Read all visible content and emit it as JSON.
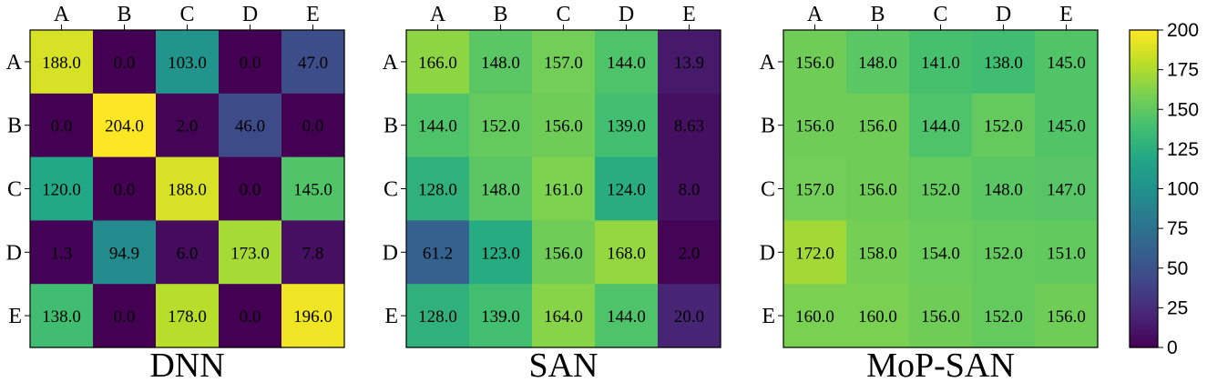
{
  "chart_data": [
    {
      "type": "heatmap",
      "title": "DNN",
      "x_categories": [
        "A",
        "B",
        "C",
        "D",
        "E"
      ],
      "y_categories": [
        "A",
        "B",
        "C",
        "D",
        "E"
      ],
      "values": [
        [
          188.0,
          0.0,
          103.0,
          0.0,
          47.0
        ],
        [
          0.0,
          204.0,
          2.0,
          46.0,
          0.0
        ],
        [
          120.0,
          0.0,
          188.0,
          0.0,
          145.0
        ],
        [
          1.3,
          94.9,
          6.0,
          173.0,
          7.8
        ],
        [
          138.0,
          0.0,
          178.0,
          0.0,
          196.0
        ]
      ],
      "labels": [
        [
          "188.0",
          "0.0",
          "103.0",
          "0.0",
          "47.0"
        ],
        [
          "0.0",
          "204.0",
          "2.0",
          "46.0",
          "0.0"
        ],
        [
          "120.0",
          "0.0",
          "188.0",
          "0.0",
          "145.0"
        ],
        [
          "1.3",
          "94.9",
          "6.0",
          "173.0",
          "7.8"
        ],
        [
          "138.0",
          "0.0",
          "178.0",
          "0.0",
          "196.0"
        ]
      ]
    },
    {
      "type": "heatmap",
      "title": "SAN",
      "x_categories": [
        "A",
        "B",
        "C",
        "D",
        "E"
      ],
      "y_categories": [
        "A",
        "B",
        "C",
        "D",
        "E"
      ],
      "values": [
        [
          166.0,
          148.0,
          157.0,
          144.0,
          13.9
        ],
        [
          144.0,
          152.0,
          156.0,
          139.0,
          8.63
        ],
        [
          128.0,
          148.0,
          161.0,
          124.0,
          8.0
        ],
        [
          61.2,
          123.0,
          156.0,
          168.0,
          2.0
        ],
        [
          128.0,
          139.0,
          164.0,
          144.0,
          20.0
        ]
      ],
      "labels": [
        [
          "166.0",
          "148.0",
          "157.0",
          "144.0",
          "13.9"
        ],
        [
          "144.0",
          "152.0",
          "156.0",
          "139.0",
          "8.63"
        ],
        [
          "128.0",
          "148.0",
          "161.0",
          "124.0",
          "8.0"
        ],
        [
          "61.2",
          "123.0",
          "156.0",
          "168.0",
          "2.0"
        ],
        [
          "128.0",
          "139.0",
          "164.0",
          "144.0",
          "20.0"
        ]
      ]
    },
    {
      "type": "heatmap",
      "title": "MoP-SAN",
      "x_categories": [
        "A",
        "B",
        "C",
        "D",
        "E"
      ],
      "y_categories": [
        "A",
        "B",
        "C",
        "D",
        "E"
      ],
      "values": [
        [
          156.0,
          148.0,
          141.0,
          138.0,
          145.0
        ],
        [
          156.0,
          156.0,
          144.0,
          152.0,
          145.0
        ],
        [
          157.0,
          156.0,
          152.0,
          148.0,
          147.0
        ],
        [
          172.0,
          158.0,
          154.0,
          152.0,
          151.0
        ],
        [
          160.0,
          160.0,
          156.0,
          152.0,
          156.0
        ]
      ],
      "labels": [
        [
          "156.0",
          "148.0",
          "141.0",
          "138.0",
          "145.0"
        ],
        [
          "156.0",
          "156.0",
          "144.0",
          "152.0",
          "145.0"
        ],
        [
          "157.0",
          "156.0",
          "152.0",
          "148.0",
          "147.0"
        ],
        [
          "172.0",
          "158.0",
          "154.0",
          "152.0",
          "151.0"
        ],
        [
          "160.0",
          "160.0",
          "156.0",
          "152.0",
          "156.0"
        ]
      ]
    }
  ],
  "colorbar": {
    "colormap": "viridis",
    "range": [
      0,
      200
    ],
    "ticks": [
      0,
      25,
      50,
      75,
      100,
      125,
      150,
      175,
      200
    ],
    "tick_labels": [
      "0",
      "25",
      "50",
      "75",
      "100",
      "125",
      "150",
      "175",
      "200"
    ]
  }
}
